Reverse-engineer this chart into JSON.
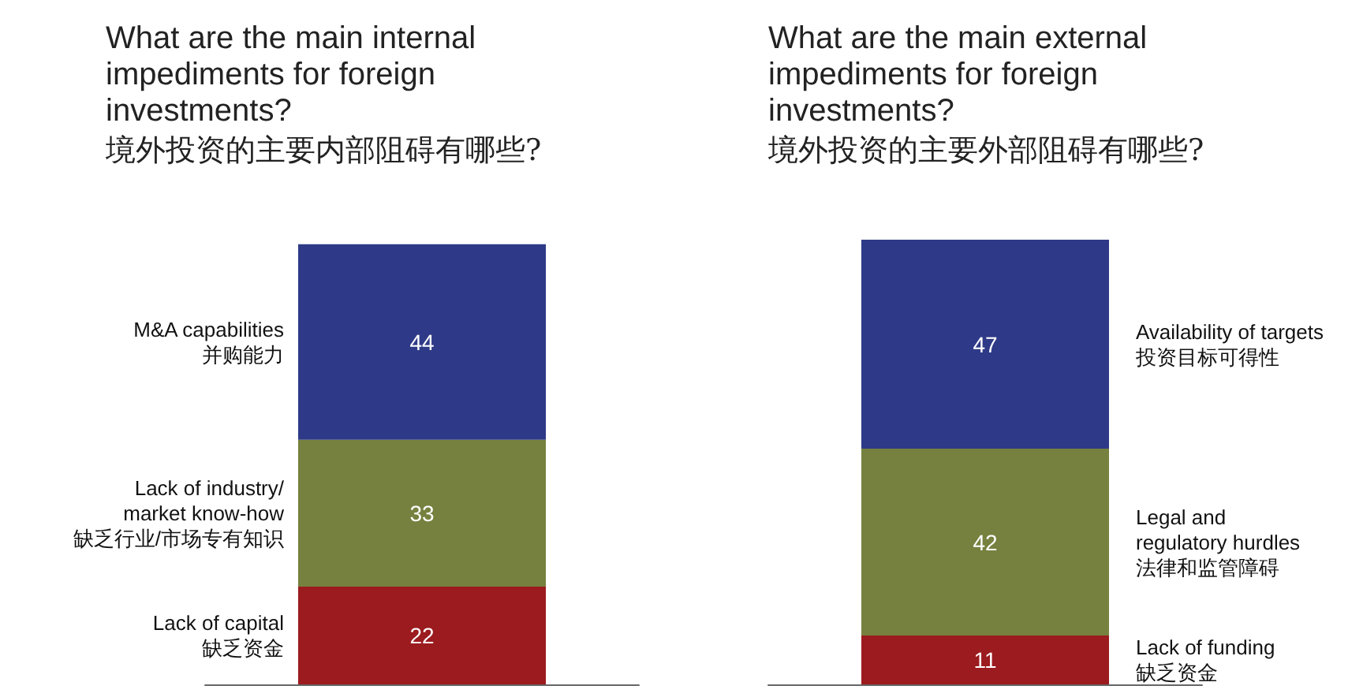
{
  "chart_data": [
    {
      "type": "bar",
      "title": "What are the main internal impediments for foreign investments?",
      "subtitle": "境外投资的主要内部阻碍有哪些?",
      "categories": [
        null
      ],
      "stacked": true,
      "data_labels": true,
      "legend": false,
      "series": [
        {
          "name": "Lack of capital\n缺乏资金",
          "color": "#9b1b1f",
          "values": [
            22
          ]
        },
        {
          "name": "Lack of industry/\nmarket know-how\n缺乏行业/市场专有知识",
          "color": "#76813f",
          "values": [
            33
          ]
        },
        {
          "name": "M&A capabilities\n并购能力",
          "color": "#2e3a87",
          "values": [
            44
          ]
        }
      ]
    },
    {
      "type": "bar",
      "title": "What are the main external impediments for foreign investments?",
      "subtitle": "境外投资的主要外部阻碍有哪些?",
      "categories": [
        null
      ],
      "stacked": true,
      "data_labels": true,
      "legend": false,
      "series": [
        {
          "name": "Lack of funding\n缺乏资金",
          "color": "#9b1b1f",
          "values": [
            11
          ]
        },
        {
          "name": "Legal and\nregulatory hurdles\n法律和监管障碍",
          "color": "#76813f",
          "values": [
            42
          ]
        },
        {
          "name": "Availability of targets\n投资目标可得性",
          "color": "#2e3a87",
          "values": [
            47
          ]
        }
      ]
    }
  ]
}
